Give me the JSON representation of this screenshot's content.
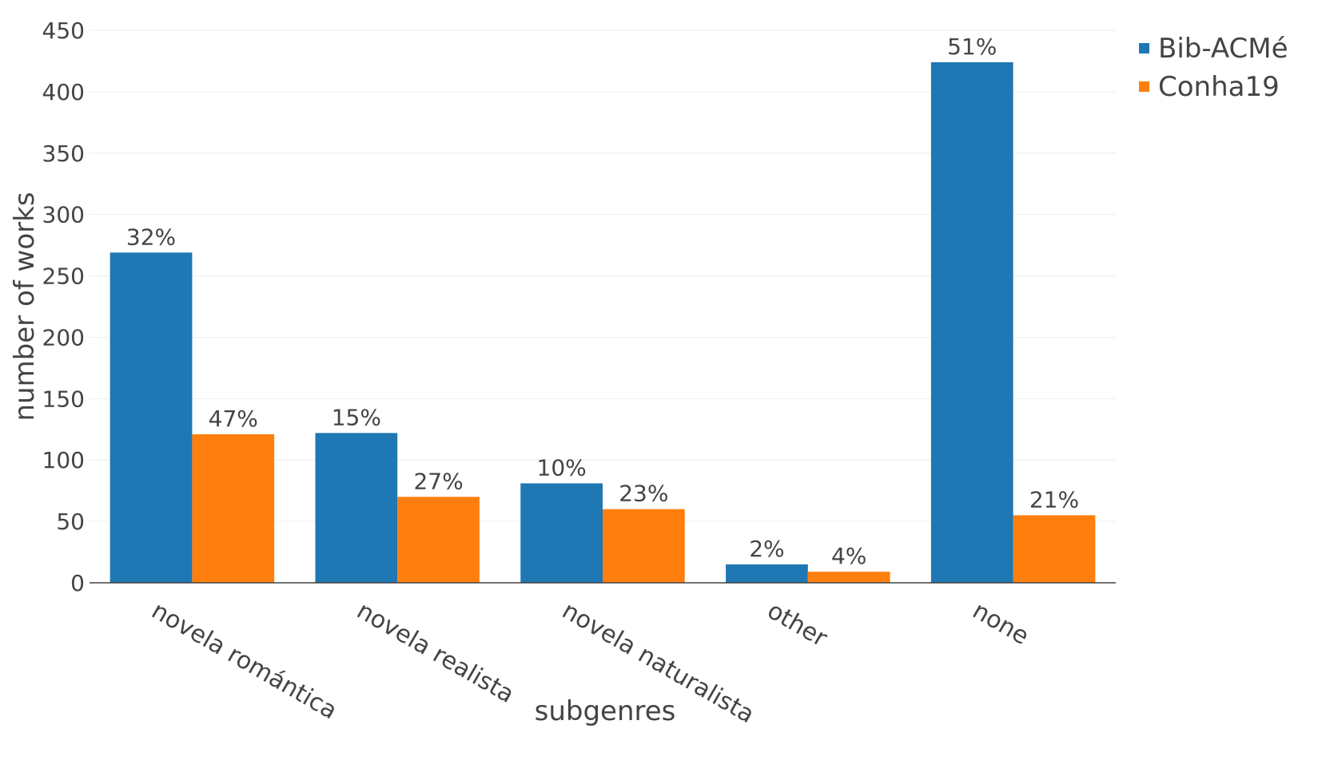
{
  "chart_data": {
    "type": "bar",
    "categories": [
      "novela romántica",
      "novela realista",
      "novela naturalista",
      "other",
      "none"
    ],
    "series": [
      {
        "name": "Bib-ACMé",
        "color": "#1f77b4",
        "values": [
          269,
          122,
          81,
          15,
          424
        ],
        "labels": [
          "32%",
          "15%",
          "10%",
          "2%",
          "51%"
        ]
      },
      {
        "name": "Conha19",
        "color": "#ff7f0e",
        "values": [
          121,
          70,
          60,
          9,
          55
        ],
        "labels": [
          "47%",
          "27%",
          "23%",
          "4%",
          "21%"
        ]
      }
    ],
    "title": "",
    "xlabel": "subgenres",
    "ylabel": "number of works",
    "ylim": [
      0,
      450
    ],
    "yticks": [
      0,
      50,
      100,
      150,
      200,
      250,
      300,
      350,
      400,
      450
    ],
    "grid": true,
    "legend_position": "top-right"
  }
}
